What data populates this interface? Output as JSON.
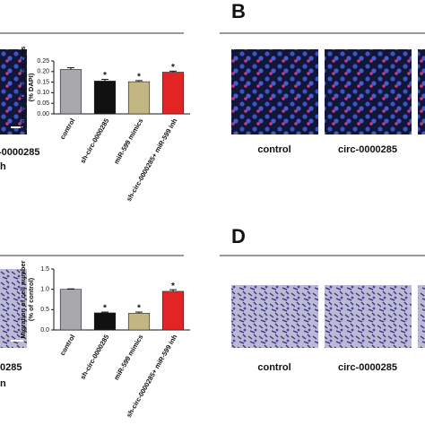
{
  "panels": {
    "top": "B",
    "bottom": "D"
  },
  "fragments": {
    "top": [
      "-0000285",
      "h"
    ],
    "bottom": [
      "0285",
      "n"
    ]
  },
  "images": {
    "top": [
      "control",
      "circ-0000285"
    ],
    "bottom": [
      "control",
      "circ-0000285"
    ]
  },
  "chart_data": [
    {
      "type": "bar",
      "ylabel": [
        "Positye EDU stained cells",
        "(% DAPI)"
      ],
      "categories": [
        "control",
        "sh-circ-0000285",
        "miR-599 mimics",
        "sh-circ-0000285+ miR-599 inh"
      ],
      "values": [
        0.21,
        0.155,
        0.152,
        0.197
      ],
      "errors": [
        0.008,
        0.008,
        0.005,
        0.005
      ],
      "colors": [
        "#a8a8ad",
        "#111111",
        "#c2b783",
        "#e32424"
      ],
      "annotations": [
        {
          "text": "*",
          "category": "sh-circ-0000285"
        },
        {
          "text": "*",
          "category": "miR-599 mimics"
        },
        {
          "text": "*",
          "category": "sh-circ-0000285+ miR-599 inh"
        }
      ],
      "ylim": [
        0,
        0.25
      ],
      "yticks": [
        {
          "value": 0,
          "label": "0.00"
        },
        {
          "value": 0.05,
          "label": "0.05"
        },
        {
          "value": 0.1,
          "label": "0.10"
        },
        {
          "value": 0.15,
          "label": "0.15"
        },
        {
          "value": 0.2,
          "label": "0.20"
        },
        {
          "value": 0.25,
          "label": "0.25"
        }
      ]
    },
    {
      "type": "bar",
      "ylabel": [
        "Migration of cell number",
        "(% of control)"
      ],
      "categories": [
        "control",
        "sh-circ-0000285",
        "miR-599 mimics",
        "sh-circ-0000285+ miR-599 inh"
      ],
      "values": [
        1.0,
        0.42,
        0.41,
        0.95
      ],
      "errors": [
        0.01,
        0.02,
        0.03,
        0.04
      ],
      "colors": [
        "#a8a8ad",
        "#111111",
        "#c2b783",
        "#e32424"
      ],
      "annotations": [
        {
          "text": "*",
          "category": "sh-circ-0000285"
        },
        {
          "text": "*",
          "category": "miR-599 mimics"
        },
        {
          "text": "*",
          "category": "sh-circ-0000285+ miR-599 inh"
        }
      ],
      "ylim": [
        0,
        1.5
      ],
      "yticks": [
        {
          "value": 0,
          "label": "0.0"
        },
        {
          "value": 0.5,
          "label": "0.5"
        },
        {
          "value": 1.0,
          "label": "1.0"
        },
        {
          "value": 1.5,
          "label": "1.5"
        }
      ]
    }
  ]
}
